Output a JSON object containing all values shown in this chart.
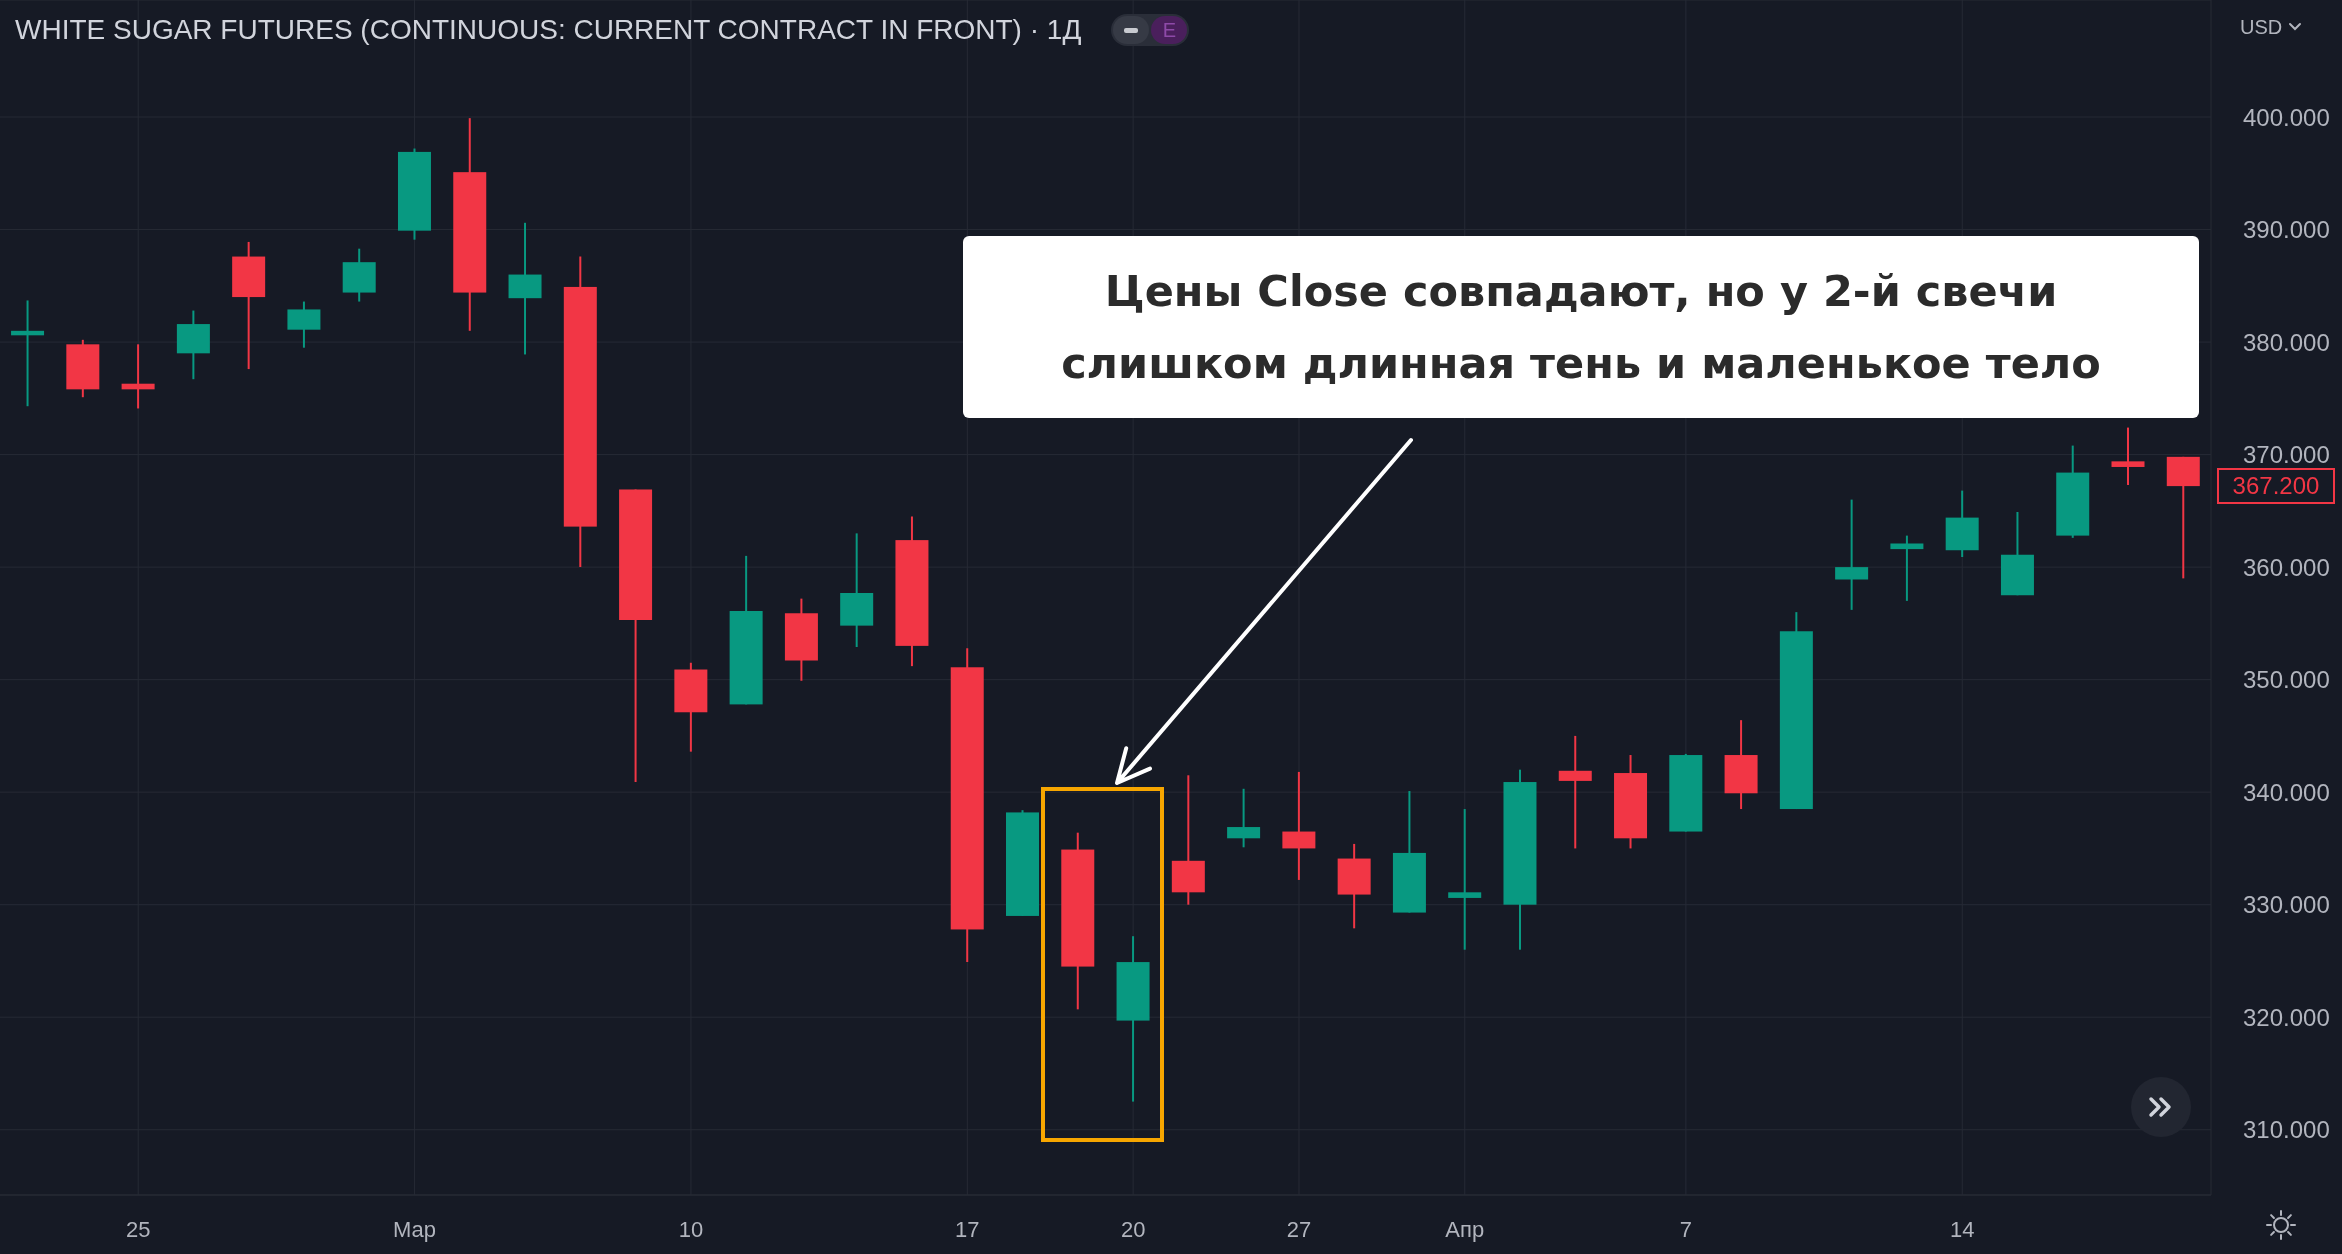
{
  "chart_data": {
    "type": "candlestick",
    "title": "WHITE SUGAR FUTURES (CONTINUOUS: CURRENT CONTRACT IN FRONT) · 1Д",
    "ylabel": "USD",
    "categories": [
      null,
      null,
      "25",
      null,
      null,
      null,
      null,
      "Мар",
      null,
      null,
      null,
      null,
      "10",
      null,
      null,
      null,
      null,
      "17",
      null,
      null,
      "20",
      null,
      null,
      "27",
      null,
      null,
      "Апр",
      null,
      null,
      null,
      "7",
      null,
      null,
      null,
      null,
      "14",
      null,
      null,
      null,
      null
    ],
    "ohlc": [
      [
        380.6,
        383.7,
        374.3,
        381.0
      ],
      [
        379.8,
        380.2,
        375.1,
        375.8
      ],
      [
        376.3,
        379.8,
        374.1,
        375.8
      ],
      [
        379.0,
        382.8,
        376.7,
        381.6
      ],
      [
        387.6,
        388.9,
        377.6,
        384.0
      ],
      [
        381.1,
        383.6,
        379.5,
        382.9
      ],
      [
        384.4,
        388.3,
        383.6,
        387.1
      ],
      [
        389.9,
        397.2,
        389.1,
        396.9
      ],
      [
        395.1,
        399.9,
        381.0,
        384.4
      ],
      [
        383.9,
        390.6,
        378.9,
        386.0
      ],
      [
        384.9,
        387.6,
        360.0,
        363.6
      ],
      [
        366.9,
        366.9,
        340.9,
        355.3
      ],
      [
        350.9,
        351.5,
        343.6,
        347.1
      ],
      [
        347.8,
        361.0,
        347.8,
        356.1
      ],
      [
        355.9,
        357.2,
        349.9,
        351.7
      ],
      [
        354.8,
        363.0,
        352.9,
        357.7
      ],
      [
        362.4,
        364.5,
        351.2,
        353.0
      ],
      [
        351.1,
        352.8,
        324.9,
        327.8
      ],
      [
        329.0,
        338.4,
        329.0,
        338.2
      ],
      [
        334.9,
        336.4,
        320.7,
        324.5
      ],
      [
        319.7,
        327.2,
        312.5,
        324.9
      ],
      [
        333.9,
        341.5,
        330.0,
        331.1
      ],
      [
        335.9,
        340.3,
        335.1,
        336.9
      ],
      [
        336.5,
        341.8,
        332.2,
        335.0
      ],
      [
        334.1,
        335.4,
        327.9,
        330.9
      ],
      [
        329.3,
        340.1,
        329.3,
        334.6
      ],
      [
        330.6,
        338.5,
        326.0,
        331.1
      ],
      [
        330.0,
        342.0,
        326.0,
        340.9
      ],
      [
        341.9,
        345.0,
        335.0,
        341.0
      ],
      [
        341.7,
        343.3,
        335.0,
        335.9
      ],
      [
        336.5,
        343.4,
        336.5,
        343.3
      ],
      [
        343.3,
        346.4,
        338.5,
        339.9
      ],
      [
        338.5,
        356.0,
        338.5,
        354.3
      ],
      [
        358.9,
        366.0,
        356.2,
        360.0
      ],
      [
        361.6,
        362.8,
        357.0,
        362.1
      ],
      [
        361.5,
        366.8,
        360.9,
        364.4
      ],
      [
        357.5,
        364.9,
        357.5,
        361.1
      ],
      [
        362.8,
        370.8,
        362.6,
        368.4
      ],
      [
        369.4,
        372.4,
        367.3,
        368.9
      ],
      [
        369.8,
        369.8,
        359.0,
        367.2
      ]
    ],
    "colors": [
      "#089981",
      "#f23645",
      "#f23645",
      "#089981",
      "#f23645",
      "#089981",
      "#089981",
      "#089981",
      "#f23645",
      "#089981",
      "#f23645",
      "#f23645",
      "#f23645",
      "#089981",
      "#f23645",
      "#089981",
      "#f23645",
      "#f23645",
      "#089981",
      "#f23645",
      "#089981",
      "#f23645",
      "#089981",
      "#f23645",
      "#f23645",
      "#089981",
      "#089981",
      "#089981",
      "#f23645",
      "#f23645",
      "#089981",
      "#f23645",
      "#089981",
      "#089981",
      "#089981",
      "#089981",
      "#089981",
      "#089981",
      "#f23645",
      "#f23645"
    ],
    "ylim": [
      304.2,
      410.4
    ],
    "yticks": [
      {
        "value": 310,
        "label": "310.000"
      },
      {
        "value": 320,
        "label": "320.000"
      },
      {
        "value": 330,
        "label": "330.000"
      },
      {
        "value": 340,
        "label": "340.000"
      },
      {
        "value": 350,
        "label": "350.000"
      },
      {
        "value": 360,
        "label": "360.000"
      },
      {
        "value": 370,
        "label": "370.000"
      },
      {
        "value": 380,
        "label": "380.000"
      },
      {
        "value": 390,
        "label": "390.000"
      },
      {
        "value": 400,
        "label": "400.000"
      }
    ],
    "grid": true,
    "annotations": [
      "Цены Close совпадают, но у 2-й свечи слишком длинная тень и маленькое тело",
      "367.200",
      "E"
    ]
  }
}
